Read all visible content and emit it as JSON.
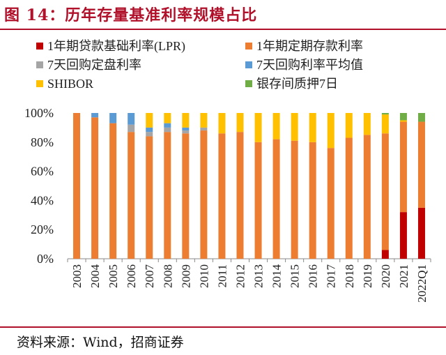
{
  "title": "图 14：历年存量基准利率规模占比",
  "source": "资料来源：Wind，招商证券",
  "chart_data": {
    "type": "bar",
    "stacked": true,
    "categories": [
      "2003",
      "2004",
      "2005",
      "2006",
      "2007",
      "2008",
      "2009",
      "2010",
      "2011",
      "2012",
      "2013",
      "2014",
      "2015",
      "2016",
      "2017",
      "2018",
      "2019",
      "2020",
      "2021",
      "2022Q1"
    ],
    "ylim": [
      0,
      100
    ],
    "yticks": [
      "0%",
      "20%",
      "40%",
      "60%",
      "80%",
      "100%"
    ],
    "legend_position": "top",
    "series": [
      {
        "name": "1年期贷款基础利率(LPR)",
        "color": "#c00000",
        "values": [
          0,
          0,
          0,
          0,
          0,
          0,
          0,
          0,
          0,
          0,
          0,
          0,
          0,
          0,
          0,
          0,
          0,
          6,
          32,
          35
        ]
      },
      {
        "name": "1年期定期存款利率",
        "color": "#ed7d31",
        "values": [
          100,
          97,
          93,
          87,
          84,
          87,
          86,
          88,
          86,
          87,
          80,
          82,
          81,
          80,
          76,
          83,
          85,
          80,
          62,
          59
        ]
      },
      {
        "name": "7天回购定盘利率",
        "color": "#a5a5a5",
        "values": [
          0,
          0,
          0,
          5,
          3,
          3,
          2,
          2,
          0,
          0,
          0,
          0,
          0,
          0,
          0,
          0,
          0,
          0,
          0,
          0
        ]
      },
      {
        "name": "7天回购利率平均值",
        "color": "#5b9bd5",
        "values": [
          0,
          3,
          7,
          8,
          3,
          3,
          2,
          0,
          0,
          0,
          0,
          0,
          0,
          0,
          0,
          0,
          0,
          0,
          0,
          0
        ]
      },
      {
        "name": "SHIBOR",
        "color": "#ffc000",
        "values": [
          0,
          0,
          0,
          0,
          10,
          7,
          10,
          10,
          14,
          13,
          20,
          18,
          19,
          20,
          24,
          17,
          15,
          13,
          1,
          0
        ]
      },
      {
        "name": "银存间质押7日",
        "color": "#70ad47",
        "values": [
          0,
          0,
          0,
          0,
          0,
          0,
          0,
          0,
          0,
          0,
          0,
          0,
          0,
          0,
          0,
          0,
          0,
          1,
          5,
          6
        ]
      }
    ]
  }
}
